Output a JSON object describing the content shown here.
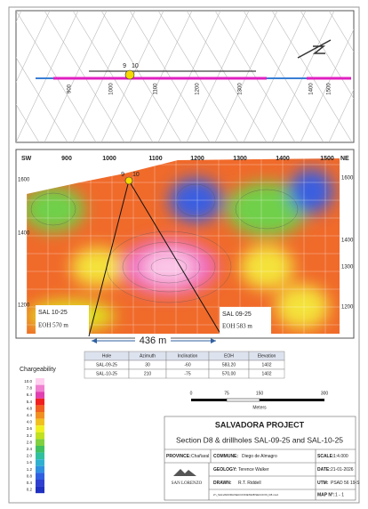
{
  "map_plan": {
    "section_labels": [
      "900",
      "1000",
      "1100",
      "1200",
      "1300",
      "1400",
      "1500"
    ],
    "holes": [
      "9",
      "10"
    ]
  },
  "section": {
    "left": "SW",
    "right": "NE",
    "x_labels": [
      "900",
      "1000",
      "1100",
      "1200",
      "1300",
      "1400",
      "1500"
    ],
    "y_left": [
      "1600",
      "1400",
      "1200"
    ],
    "y_right": [
      "1600",
      "1400",
      "1300",
      "1200"
    ],
    "holes": [
      "9",
      "10"
    ],
    "callouts": [
      {
        "hole": "SAL 10-25",
        "eoh": "EOH 570 m"
      },
      {
        "hole": "SAL 09-25",
        "eoh": "EOH 583 m"
      }
    ],
    "distance": "436 m"
  },
  "table": {
    "header": [
      "Hole",
      "Azimuth",
      "Inclination",
      "EOH",
      "Elevation"
    ],
    "rows": [
      [
        "SAL-09-25",
        "30",
        "-60",
        "583,20",
        "1402"
      ],
      [
        "SAL-10-25",
        "210",
        "-75",
        "570,00",
        "1402"
      ]
    ]
  },
  "legend": {
    "title": "Chargeability",
    "labels": [
      "10.0",
      "7.8",
      "6.4",
      "5.4",
      "4.8",
      "4.4",
      "4.0",
      "3.6",
      "3.2",
      "2.8",
      "2.4",
      "2.0",
      "1.6",
      "1.2",
      "0.8",
      "0.4",
      "0.2"
    ]
  },
  "scale": {
    "labels": [
      "0",
      "75",
      "150",
      "300"
    ],
    "unit": "Meters"
  },
  "title_block": {
    "project": "SALVADORA PROJECT",
    "subtitle": "Section D8 & drillholes SAL-09-25 and SAL-10-25",
    "fields": [
      {
        "label": "PROVINCE:",
        "value": "Chañaral"
      },
      {
        "label": "COMMUNE:",
        "value": "Diego de Almagro"
      },
      {
        "label": "SCALE:",
        "value": "1:4.000"
      },
      {
        "label": "GEOLOGY:",
        "value": "Terence Walker"
      },
      {
        "label": "DATE:",
        "value": "21-01-2026"
      },
      {
        "label": "DRAWN:",
        "value": "R.T. Riddell"
      },
      {
        "label": "UTM:",
        "value": "PSAD 56 19-S"
      },
      {
        "label": "MAP N°:",
        "value": "1 - 1"
      }
    ],
    "company": "SAN LORENZO",
    "file": "Z:\\_SALVADORA\\SECCIONES\\D8\\SECCION_D8.mxd"
  }
}
